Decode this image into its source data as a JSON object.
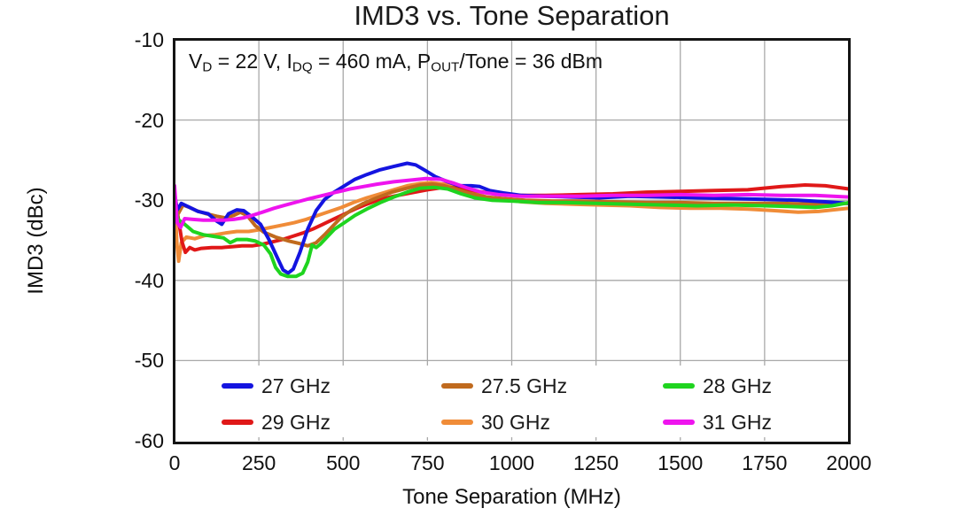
{
  "chart_data": {
    "type": "line",
    "title": "IMD3 vs. Tone Separation",
    "xlabel": "Tone Separation (MHz)",
    "ylabel": "IMD3 (dBc)",
    "xlim": [
      0,
      2000
    ],
    "ylim": [
      -60,
      -10
    ],
    "x_ticks": [
      0,
      250,
      500,
      750,
      1000,
      1250,
      1500,
      1750,
      2000
    ],
    "y_ticks": [
      -10,
      -20,
      -30,
      -40,
      -50,
      -60
    ],
    "grid": true,
    "grid_color": "#a8a8a8",
    "legend_position": "inside-bottom",
    "annotation_parts": [
      {
        "t": "V"
      },
      {
        "t": "D",
        "sub": true
      },
      {
        "t": " = 22 V, I"
      },
      {
        "t": "DQ",
        "sub": true
      },
      {
        "t": " = 460 mA, P"
      },
      {
        "t": "OUT",
        "sub": true
      },
      {
        "t": "/Tone = 36 dBm"
      }
    ],
    "series": [
      {
        "name": "27 GHz",
        "color": "#1414e0",
        "points": [
          [
            0,
            -29.2
          ],
          [
            8,
            -31.2
          ],
          [
            20,
            -30.4
          ],
          [
            40,
            -30.8
          ],
          [
            70,
            -31.4
          ],
          [
            100,
            -31.7
          ],
          [
            125,
            -32.6
          ],
          [
            140,
            -33.0
          ],
          [
            160,
            -31.7
          ],
          [
            185,
            -31.2
          ],
          [
            205,
            -31.3
          ],
          [
            230,
            -32.1
          ],
          [
            255,
            -33.0
          ],
          [
            280,
            -34.9
          ],
          [
            305,
            -37.2
          ],
          [
            322,
            -38.7
          ],
          [
            337,
            -39.1
          ],
          [
            352,
            -38.6
          ],
          [
            372,
            -36.5
          ],
          [
            395,
            -33.6
          ],
          [
            420,
            -31.3
          ],
          [
            445,
            -29.9
          ],
          [
            470,
            -29.1
          ],
          [
            500,
            -28.3
          ],
          [
            535,
            -27.4
          ],
          [
            570,
            -26.8
          ],
          [
            610,
            -26.2
          ],
          [
            650,
            -25.8
          ],
          [
            690,
            -25.4
          ],
          [
            715,
            -25.6
          ],
          [
            740,
            -26.2
          ],
          [
            775,
            -27.1
          ],
          [
            810,
            -27.7
          ],
          [
            845,
            -28.2
          ],
          [
            880,
            -28.2
          ],
          [
            905,
            -28.3
          ],
          [
            935,
            -28.8
          ],
          [
            975,
            -29.1
          ],
          [
            1030,
            -29.4
          ],
          [
            1100,
            -29.5
          ],
          [
            1180,
            -29.6
          ],
          [
            1260,
            -29.7
          ],
          [
            1350,
            -29.5
          ],
          [
            1450,
            -29.6
          ],
          [
            1550,
            -29.7
          ],
          [
            1650,
            -29.8
          ],
          [
            1750,
            -29.9
          ],
          [
            1850,
            -30.0
          ],
          [
            1930,
            -30.2
          ],
          [
            2000,
            -30.4
          ]
        ]
      },
      {
        "name": "27.5 GHz",
        "color": "#c06a1e",
        "points": [
          [
            0,
            -29.4
          ],
          [
            8,
            -31.9
          ],
          [
            25,
            -30.6
          ],
          [
            45,
            -30.9
          ],
          [
            65,
            -31.3
          ],
          [
            95,
            -31.7
          ],
          [
            125,
            -32.0
          ],
          [
            150,
            -32.2
          ],
          [
            175,
            -31.9
          ],
          [
            195,
            -31.5
          ],
          [
            215,
            -31.9
          ],
          [
            240,
            -33.2
          ],
          [
            265,
            -34.0
          ],
          [
            300,
            -34.6
          ],
          [
            340,
            -35.1
          ],
          [
            370,
            -35.4
          ],
          [
            395,
            -35.7
          ],
          [
            420,
            -35.3
          ],
          [
            445,
            -34.3
          ],
          [
            470,
            -33.2
          ],
          [
            495,
            -32.1
          ],
          [
            525,
            -31.2
          ],
          [
            560,
            -30.4
          ],
          [
            600,
            -29.7
          ],
          [
            645,
            -29.0
          ],
          [
            690,
            -28.5
          ],
          [
            730,
            -28.1
          ],
          [
            765,
            -28.0
          ],
          [
            800,
            -28.2
          ],
          [
            840,
            -28.7
          ],
          [
            880,
            -29.2
          ],
          [
            925,
            -29.6
          ],
          [
            975,
            -29.8
          ],
          [
            1040,
            -30.0
          ],
          [
            1120,
            -30.1
          ],
          [
            1200,
            -30.1
          ],
          [
            1300,
            -30.2
          ],
          [
            1400,
            -30.3
          ],
          [
            1500,
            -30.3
          ],
          [
            1600,
            -30.4
          ],
          [
            1700,
            -30.4
          ],
          [
            1800,
            -30.4
          ],
          [
            1900,
            -30.5
          ],
          [
            2000,
            -30.4
          ]
        ]
      },
      {
        "name": "28 GHz",
        "color": "#1fd41f",
        "points": [
          [
            0,
            -30.2
          ],
          [
            10,
            -32.4
          ],
          [
            30,
            -33.0
          ],
          [
            55,
            -33.9
          ],
          [
            85,
            -34.3
          ],
          [
            115,
            -34.5
          ],
          [
            145,
            -34.7
          ],
          [
            165,
            -35.3
          ],
          [
            185,
            -34.9
          ],
          [
            215,
            -34.9
          ],
          [
            240,
            -35.1
          ],
          [
            265,
            -35.6
          ],
          [
            285,
            -36.7
          ],
          [
            300,
            -38.4
          ],
          [
            315,
            -39.2
          ],
          [
            335,
            -39.5
          ],
          [
            360,
            -39.5
          ],
          [
            380,
            -39.1
          ],
          [
            395,
            -37.7
          ],
          [
            408,
            -35.6
          ],
          [
            420,
            -35.9
          ],
          [
            432,
            -35.5
          ],
          [
            450,
            -34.7
          ],
          [
            475,
            -33.6
          ],
          [
            500,
            -32.9
          ],
          [
            535,
            -31.9
          ],
          [
            570,
            -31.1
          ],
          [
            610,
            -30.3
          ],
          [
            650,
            -29.6
          ],
          [
            690,
            -29.0
          ],
          [
            730,
            -28.5
          ],
          [
            770,
            -28.4
          ],
          [
            810,
            -28.6
          ],
          [
            850,
            -29.2
          ],
          [
            890,
            -29.7
          ],
          [
            940,
            -30.0
          ],
          [
            1000,
            -30.1
          ],
          [
            1080,
            -30.3
          ],
          [
            1160,
            -30.3
          ],
          [
            1250,
            -30.4
          ],
          [
            1350,
            -30.5
          ],
          [
            1450,
            -30.6
          ],
          [
            1550,
            -30.7
          ],
          [
            1650,
            -30.6
          ],
          [
            1750,
            -30.7
          ],
          [
            1830,
            -30.8
          ],
          [
            1900,
            -30.9
          ],
          [
            1950,
            -30.7
          ],
          [
            2000,
            -30.3
          ]
        ]
      },
      {
        "name": "29 GHz",
        "color": "#e01818",
        "points": [
          [
            0,
            -29.5
          ],
          [
            10,
            -32.0
          ],
          [
            22,
            -35.2
          ],
          [
            32,
            -36.5
          ],
          [
            45,
            -35.9
          ],
          [
            60,
            -36.2
          ],
          [
            80,
            -36.0
          ],
          [
            110,
            -35.9
          ],
          [
            140,
            -35.9
          ],
          [
            170,
            -35.8
          ],
          [
            200,
            -35.7
          ],
          [
            230,
            -35.7
          ],
          [
            260,
            -35.5
          ],
          [
            290,
            -35.2
          ],
          [
            320,
            -34.9
          ],
          [
            350,
            -34.5
          ],
          [
            380,
            -34.1
          ],
          [
            410,
            -33.6
          ],
          [
            440,
            -33.0
          ],
          [
            470,
            -32.4
          ],
          [
            500,
            -31.8
          ],
          [
            535,
            -31.1
          ],
          [
            570,
            -30.5
          ],
          [
            610,
            -29.9
          ],
          [
            650,
            -29.5
          ],
          [
            700,
            -29.1
          ],
          [
            750,
            -28.7
          ],
          [
            800,
            -28.4
          ],
          [
            850,
            -28.5
          ],
          [
            900,
            -28.9
          ],
          [
            950,
            -29.2
          ],
          [
            1000,
            -29.4
          ],
          [
            1100,
            -29.4
          ],
          [
            1200,
            -29.3
          ],
          [
            1300,
            -29.2
          ],
          [
            1400,
            -29.0
          ],
          [
            1500,
            -28.9
          ],
          [
            1600,
            -28.8
          ],
          [
            1700,
            -28.7
          ],
          [
            1800,
            -28.3
          ],
          [
            1870,
            -28.1
          ],
          [
            1930,
            -28.2
          ],
          [
            2000,
            -28.6
          ]
        ]
      },
      {
        "name": "30 GHz",
        "color": "#f08c38",
        "points": [
          [
            0,
            -29.8
          ],
          [
            7,
            -35.5
          ],
          [
            12,
            -37.6
          ],
          [
            20,
            -35.3
          ],
          [
            35,
            -34.6
          ],
          [
            60,
            -34.8
          ],
          [
            90,
            -34.4
          ],
          [
            120,
            -34.3
          ],
          [
            150,
            -34.1
          ],
          [
            185,
            -33.9
          ],
          [
            220,
            -33.9
          ],
          [
            250,
            -33.7
          ],
          [
            285,
            -33.4
          ],
          [
            320,
            -33.1
          ],
          [
            355,
            -32.8
          ],
          [
            390,
            -32.4
          ],
          [
            425,
            -31.9
          ],
          [
            460,
            -31.4
          ],
          [
            495,
            -30.9
          ],
          [
            530,
            -30.3
          ],
          [
            570,
            -29.7
          ],
          [
            610,
            -29.2
          ],
          [
            650,
            -28.7
          ],
          [
            690,
            -28.2
          ],
          [
            730,
            -27.9
          ],
          [
            762,
            -27.8
          ],
          [
            800,
            -28.0
          ],
          [
            840,
            -28.5
          ],
          [
            880,
            -29.1
          ],
          [
            925,
            -29.6
          ],
          [
            975,
            -29.9
          ],
          [
            1030,
            -30.2
          ],
          [
            1100,
            -30.4
          ],
          [
            1180,
            -30.5
          ],
          [
            1260,
            -30.6
          ],
          [
            1350,
            -30.7
          ],
          [
            1440,
            -30.9
          ],
          [
            1530,
            -31.0
          ],
          [
            1620,
            -31.0
          ],
          [
            1700,
            -31.1
          ],
          [
            1780,
            -31.3
          ],
          [
            1850,
            -31.5
          ],
          [
            1910,
            -31.4
          ],
          [
            2000,
            -31.0
          ]
        ]
      },
      {
        "name": "31 GHz",
        "color": "#ee14ee",
        "points": [
          [
            0,
            -28.2
          ],
          [
            8,
            -32.8
          ],
          [
            18,
            -33.4
          ],
          [
            30,
            -32.3
          ],
          [
            55,
            -32.4
          ],
          [
            85,
            -32.5
          ],
          [
            115,
            -32.5
          ],
          [
            145,
            -32.5
          ],
          [
            175,
            -32.4
          ],
          [
            205,
            -32.2
          ],
          [
            230,
            -31.9
          ],
          [
            260,
            -31.5
          ],
          [
            295,
            -31.0
          ],
          [
            330,
            -30.6
          ],
          [
            365,
            -30.2
          ],
          [
            400,
            -29.8
          ],
          [
            440,
            -29.4
          ],
          [
            480,
            -29.0
          ],
          [
            520,
            -28.6
          ],
          [
            560,
            -28.3
          ],
          [
            600,
            -28.0
          ],
          [
            650,
            -27.7
          ],
          [
            700,
            -27.5
          ],
          [
            745,
            -27.3
          ],
          [
            790,
            -27.4
          ],
          [
            830,
            -27.9
          ],
          [
            870,
            -28.5
          ],
          [
            910,
            -29.0
          ],
          [
            960,
            -29.3
          ],
          [
            1030,
            -29.5
          ],
          [
            1100,
            -29.5
          ],
          [
            1200,
            -29.5
          ],
          [
            1300,
            -29.4
          ],
          [
            1400,
            -29.4
          ],
          [
            1500,
            -29.3
          ],
          [
            1600,
            -29.4
          ],
          [
            1700,
            -29.3
          ],
          [
            1800,
            -29.4
          ],
          [
            1900,
            -29.4
          ],
          [
            2000,
            -29.6
          ]
        ]
      }
    ]
  }
}
